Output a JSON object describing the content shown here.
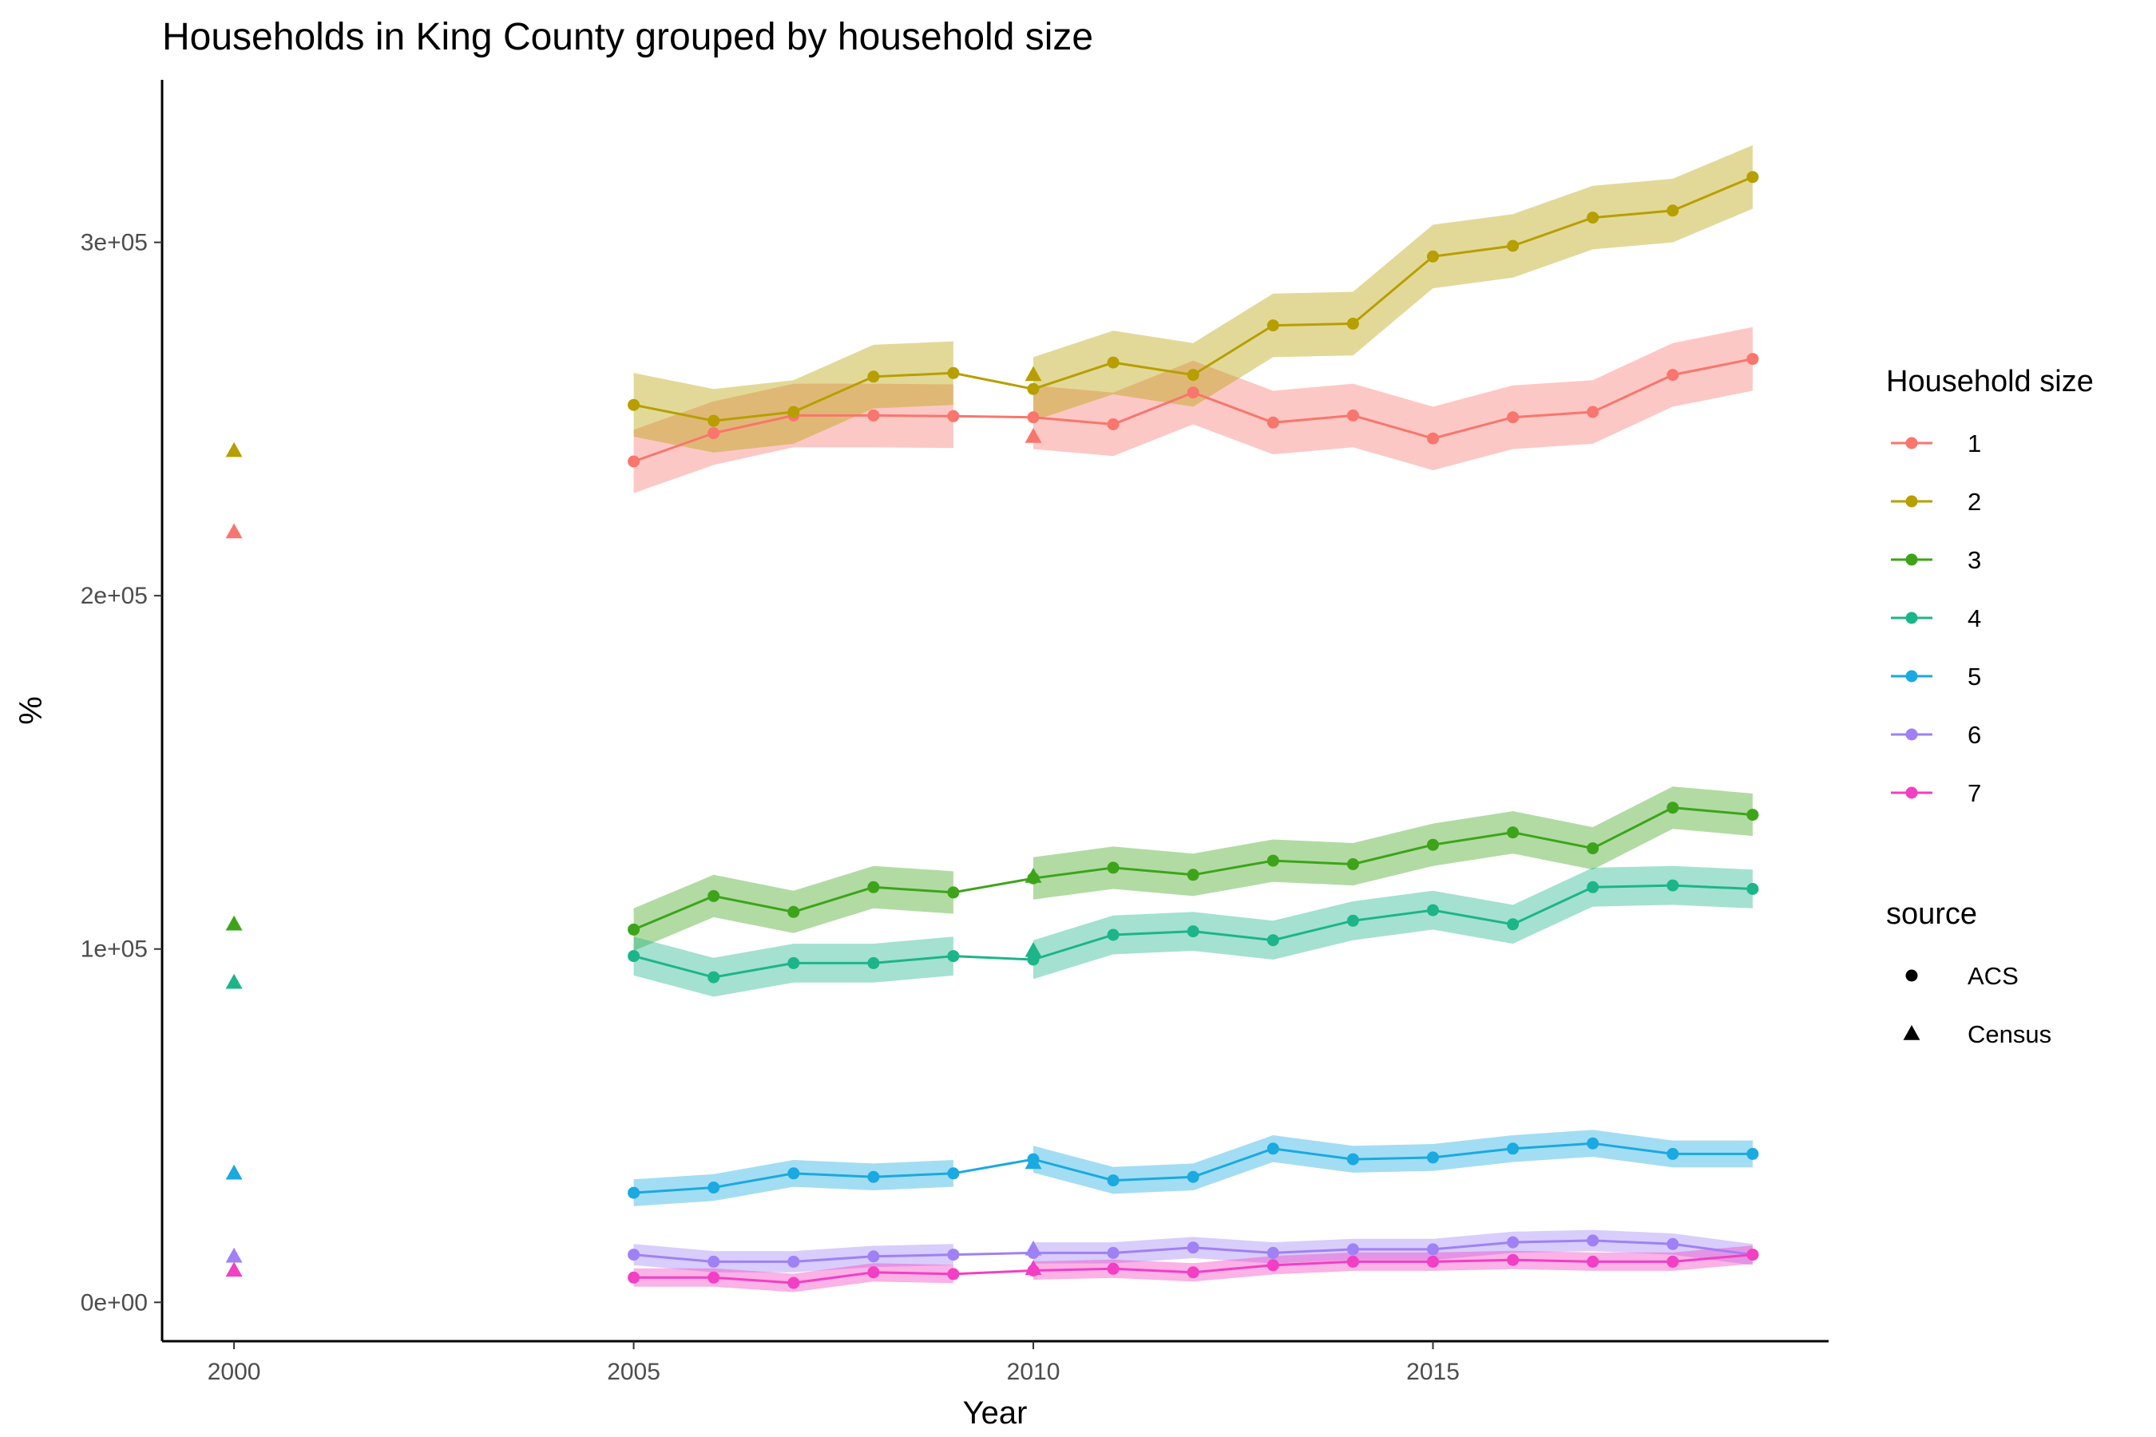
{
  "chart_data": {
    "type": "line",
    "title": "Households in King County grouped by household size",
    "xlabel": "Year",
    "ylabel": "%",
    "xlim": [
      1999.1,
      2019.95
    ],
    "ylim": [
      -11000,
      346000
    ],
    "x_ticks": [
      2000,
      2005,
      2010,
      2015
    ],
    "x_tick_labels": [
      "2000",
      "2005",
      "2010",
      "2015"
    ],
    "y_ticks": [
      0,
      100000,
      200000,
      300000
    ],
    "y_tick_labels": [
      "0e+00",
      "1e+05",
      "2e+05",
      "3e+05"
    ],
    "grid": false,
    "legend_placement": "right",
    "legend": {
      "color_title": "Household size",
      "shape_title": "source",
      "shapes": [
        {
          "label": "ACS",
          "shape": "circle"
        },
        {
          "label": "Census",
          "shape": "triangle"
        }
      ]
    },
    "acs_years": [
      2005,
      2006,
      2007,
      2008,
      2009,
      2010,
      2011,
      2012,
      2013,
      2014,
      2015,
      2016,
      2017,
      2018,
      2019
    ],
    "census_years": [
      2000,
      2010
    ],
    "series": [
      {
        "name": "1",
        "color": "#F8766D",
        "acs": [
          238000,
          246000,
          251000,
          251000,
          250800,
          250500,
          248500,
          257500,
          249000,
          251000,
          244500,
          250500,
          252000,
          262500,
          267000
        ],
        "moe": 9000,
        "census": [
          218000,
          245000
        ]
      },
      {
        "name": "2",
        "color": "#B79F00",
        "acs": [
          254000,
          249500,
          252000,
          262000,
          263000,
          258500,
          266000,
          262500,
          276500,
          277000,
          296000,
          299000,
          307000,
          309000,
          318500
        ],
        "moe": 9000,
        "census": [
          241000,
          262500
        ]
      },
      {
        "name": "3",
        "color": "#3DA41A",
        "acs": [
          105500,
          115000,
          110500,
          117500,
          116000,
          120000,
          123000,
          121000,
          125000,
          124000,
          129500,
          133000,
          128500,
          140000,
          138000
        ],
        "moe": 6000,
        "census": [
          107000,
          120500
        ]
      },
      {
        "name": "4",
        "color": "#1CB58A",
        "acs": [
          98000,
          92000,
          96000,
          96000,
          98000,
          97000,
          104000,
          105000,
          102500,
          108000,
          111000,
          107000,
          117500,
          118000,
          117000
        ],
        "moe": 5500,
        "census": [
          90500,
          99500
        ]
      },
      {
        "name": "5",
        "color": "#1AA9E0",
        "acs": [
          31000,
          32500,
          36500,
          35500,
          36500,
          40500,
          34500,
          35500,
          43500,
          40500,
          41000,
          43500,
          45000,
          42000,
          42000
        ],
        "moe": 3800,
        "census": [
          36500,
          39500
        ]
      },
      {
        "name": "6",
        "color": "#9F81F5",
        "acs": [
          13500,
          11500,
          11500,
          13000,
          13500,
          14000,
          14000,
          15500,
          14000,
          15000,
          15000,
          17000,
          17500,
          16500,
          13500
        ],
        "moe": 3000,
        "census": [
          13000,
          15000
        ]
      },
      {
        "name": "7",
        "color": "#F23FC3",
        "acs": [
          7000,
          7000,
          5500,
          8500,
          8000,
          9000,
          9500,
          8500,
          10500,
          11500,
          11500,
          12000,
          11500,
          11500,
          13500
        ],
        "moe": 2600,
        "census": [
          9000,
          9500
        ]
      }
    ]
  }
}
